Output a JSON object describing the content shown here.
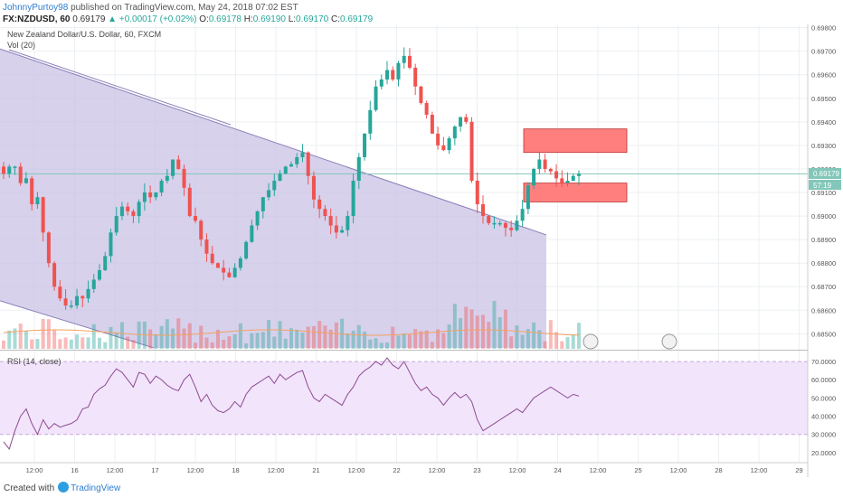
{
  "header": {
    "author": "JohnnyPurtoy98",
    "published": "published on TradingView.com, May 24, 2018 07:02 EST",
    "symbol": "FX:NZDUSD, 60",
    "last": "0.69179",
    "change_arrow": "▲",
    "change": "+0.00017 (+0.02%)",
    "o_label": "O:",
    "o": "0.69178",
    "h_label": "H:",
    "h": "0.69190",
    "l_label": "L:",
    "l": "0.69170",
    "c_label": "C:",
    "c": "0.69179"
  },
  "legend": {
    "instrument": "New Zealand Dollar/U.S. Dollar, 60, FXCM",
    "volume": "Vol (20)",
    "rsi": "RSI (14, close)"
  },
  "footer": {
    "created_with": "Created with",
    "brand": "TradingView"
  },
  "colors": {
    "up": "#26a69a",
    "down": "#ef5350",
    "channel_fill": "#c9c2e6",
    "zone_fill": "#ff7f7f",
    "rsi_line": "#8e4b91",
    "rsi_band": "#f1e4fb",
    "price_line": "#82c7b9"
  },
  "chart_data": [
    {
      "type": "candlestick",
      "title": "New Zealand Dollar/U.S. Dollar, 60, FXCM",
      "y_ticks": [
        "0.69800",
        "0.69700",
        "0.69600",
        "0.69500",
        "0.69400",
        "0.69300",
        "0.69200",
        "0.69100",
        "0.69000",
        "0.68900",
        "0.68800",
        "0.68700",
        "0.68600",
        "0.68500"
      ],
      "x_ticks": [
        "12:00",
        "16",
        "12:00",
        "17",
        "12:00",
        "18",
        "12:00",
        "21",
        "12:00",
        "22",
        "12:00",
        "23",
        "12:00",
        "24",
        "12:00",
        "25",
        "12:00",
        "28",
        "12:00",
        "29"
      ],
      "ylim": [
        0.6844,
        0.6981
      ],
      "last_price": "0.69179",
      "countdown": "57:19",
      "close_path": [
        0.6918,
        0.6921,
        0.6921,
        0.6914,
        0.6916,
        0.6905,
        0.6908,
        0.6893,
        0.688,
        0.687,
        0.6865,
        0.6862,
        0.6862,
        0.6866,
        0.6865,
        0.6869,
        0.6873,
        0.6877,
        0.6883,
        0.6893,
        0.69,
        0.6904,
        0.6902,
        0.69,
        0.6906,
        0.691,
        0.6908,
        0.691,
        0.6915,
        0.6917,
        0.6924,
        0.692,
        0.6912,
        0.69,
        0.6898,
        0.689,
        0.6884,
        0.688,
        0.6878,
        0.6876,
        0.6874,
        0.6878,
        0.6882,
        0.6889,
        0.6896,
        0.6902,
        0.6908,
        0.6911,
        0.6915,
        0.6918,
        0.6921,
        0.6922,
        0.6925,
        0.6927,
        0.6917,
        0.6907,
        0.6903,
        0.69,
        0.6896,
        0.6893,
        0.6894,
        0.69,
        0.6915,
        0.6925,
        0.6935,
        0.6945,
        0.6955,
        0.6958,
        0.6962,
        0.6958,
        0.6965,
        0.6968,
        0.6963,
        0.6955,
        0.6948,
        0.6943,
        0.6935,
        0.693,
        0.6928,
        0.6933,
        0.6938,
        0.6942,
        0.694,
        0.6915,
        0.6905,
        0.69,
        0.6897,
        0.6897,
        0.6897,
        0.6895,
        0.6894,
        0.6898,
        0.6903,
        0.6913,
        0.692,
        0.6924,
        0.692,
        0.6919,
        0.6916,
        0.6914,
        0.6915,
        0.6917,
        0.6918
      ],
      "zones": [
        {
          "name": "supply-zone-upper",
          "top": 0.6937,
          "bottom": 0.6927
        },
        {
          "name": "supply-zone-lower",
          "top": 0.6914,
          "bottom": 0.6906
        }
      ],
      "channel": {
        "upper_start": 0.6971,
        "upper_end": 0.6892,
        "lower_start": 0.6864,
        "lower_end": 0.6844
      }
    },
    {
      "type": "line",
      "title": "RSI (14, close)",
      "y_ticks": [
        "70.0000",
        "60.0000",
        "50.0000",
        "40.0000",
        "30.0000",
        "20.0000"
      ],
      "ylim": [
        15,
        74
      ],
      "bands": [
        30,
        70
      ],
      "values": [
        26,
        22,
        32,
        40,
        44,
        36,
        30,
        38,
        33,
        36,
        34,
        35,
        36,
        38,
        44,
        45,
        52,
        55,
        57,
        62,
        66,
        64,
        60,
        56,
        64,
        63,
        58,
        62,
        60,
        57,
        55,
        54,
        60,
        63,
        56,
        48,
        52,
        46,
        43,
        42,
        44,
        48,
        45,
        52,
        56,
        58,
        60,
        62,
        58,
        63,
        60,
        62,
        64,
        65,
        56,
        50,
        48,
        52,
        50,
        48,
        46,
        52,
        56,
        62,
        65,
        67,
        70,
        68,
        72,
        68,
        66,
        70,
        64,
        58,
        54,
        56,
        52,
        50,
        46,
        50,
        53,
        50,
        52,
        48,
        38,
        32,
        34,
        36,
        38,
        40,
        42,
        44,
        42,
        46,
        50,
        52,
        54,
        56,
        54,
        52,
        50,
        52,
        51
      ]
    }
  ]
}
